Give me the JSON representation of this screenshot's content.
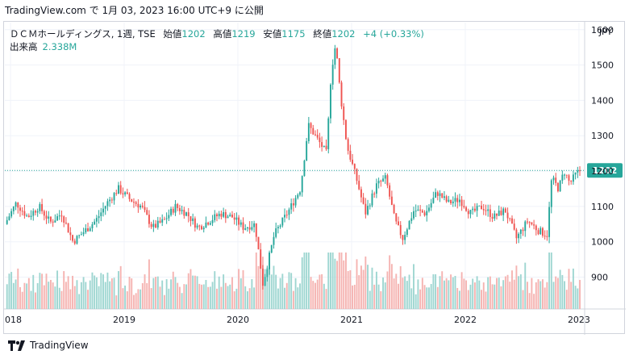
{
  "header": {
    "caption": "TradingView.com で 1月 03, 2023 16:00 UTC+9 に公開"
  },
  "legend": {
    "symbol": "ＤＣＭホールディングス, 1週, TSE",
    "open_label": "始値",
    "open": "1202",
    "high_label": "高値",
    "high": "1219",
    "low_label": "安値",
    "low": "1175",
    "close_label": "終値",
    "close": "1202",
    "change": "+4 (+0.33%)",
    "volume_label": "出来高",
    "volume": "2.338M"
  },
  "footer": {
    "brand": "TradingView"
  },
  "colors": {
    "up": "#26a69a",
    "down": "#ef5350",
    "up_vol": "#9ed6d1",
    "down_vol": "#f5b3b1",
    "axis_text": "#131722"
  },
  "chart_data": {
    "type": "candlestick",
    "currency": "JPY",
    "timeframe": "1週",
    "y_ticks": [
      900,
      1000,
      1100,
      1200,
      1300,
      1400,
      1500,
      1600
    ],
    "ylim": [
      810,
      1620
    ],
    "x_ticks": [
      "2018",
      "2019",
      "2020",
      "2021",
      "2022",
      "2023"
    ],
    "xlim": [
      2017.95,
      2023.05
    ],
    "last_price": 1202,
    "last_price_label": "1202",
    "close_path": [
      [
        2017.95,
        1050
      ],
      [
        2018.05,
        1110
      ],
      [
        2018.15,
        1070
      ],
      [
        2018.25,
        1100
      ],
      [
        2018.35,
        1055
      ],
      [
        2018.45,
        1080
      ],
      [
        2018.55,
        1000
      ],
      [
        2018.65,
        1030
      ],
      [
        2018.75,
        1060
      ],
      [
        2018.85,
        1110
      ],
      [
        2018.95,
        1150
      ],
      [
        2019.05,
        1120
      ],
      [
        2019.15,
        1100
      ],
      [
        2019.25,
        1040
      ],
      [
        2019.35,
        1060
      ],
      [
        2019.45,
        1100
      ],
      [
        2019.55,
        1080
      ],
      [
        2019.65,
        1040
      ],
      [
        2019.75,
        1060
      ],
      [
        2019.85,
        1080
      ],
      [
        2019.95,
        1070
      ],
      [
        2020.05,
        1040
      ],
      [
        2020.15,
        1050
      ],
      [
        2020.22,
        880
      ],
      [
        2020.32,
        1020
      ],
      [
        2020.45,
        1090
      ],
      [
        2020.55,
        1150
      ],
      [
        2020.62,
        1330
      ],
      [
        2020.7,
        1290
      ],
      [
        2020.78,
        1250
      ],
      [
        2020.82,
        1480
      ],
      [
        2020.86,
        1560
      ],
      [
        2020.9,
        1420
      ],
      [
        2020.96,
        1270
      ],
      [
        2021.05,
        1170
      ],
      [
        2021.12,
        1080
      ],
      [
        2021.22,
        1160
      ],
      [
        2021.3,
        1180
      ],
      [
        2021.38,
        1060
      ],
      [
        2021.45,
        1010
      ],
      [
        2021.55,
        1090
      ],
      [
        2021.65,
        1080
      ],
      [
        2021.75,
        1140
      ],
      [
        2021.85,
        1110
      ],
      [
        2021.95,
        1120
      ],
      [
        2022.05,
        1080
      ],
      [
        2022.15,
        1100
      ],
      [
        2022.25,
        1070
      ],
      [
        2022.35,
        1090
      ],
      [
        2022.45,
        1010
      ],
      [
        2022.55,
        1060
      ],
      [
        2022.65,
        1030
      ],
      [
        2022.72,
        1020
      ],
      [
        2022.76,
        1180
      ],
      [
        2022.82,
        1150
      ],
      [
        2022.87,
        1200
      ],
      [
        2022.92,
        1165
      ],
      [
        2022.97,
        1190
      ],
      [
        2023.01,
        1202
      ]
    ]
  }
}
